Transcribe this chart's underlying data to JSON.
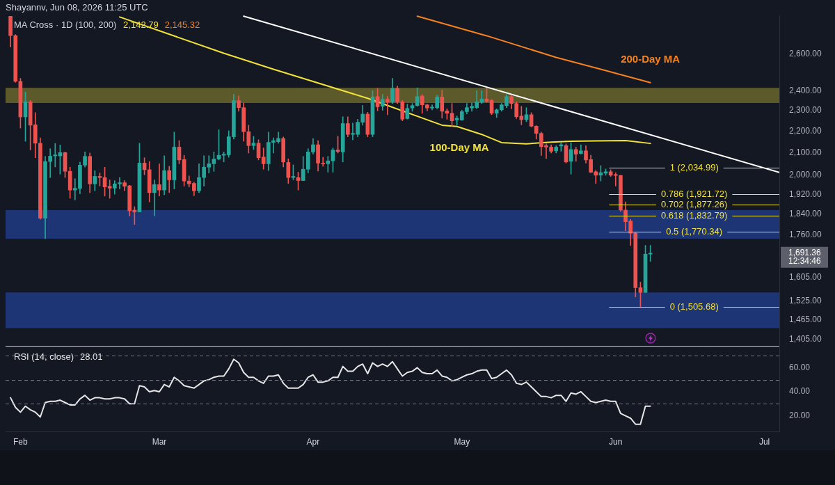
{
  "chart_data": [
    {
      "type": "candlestick",
      "title": "Shayannv, Jun 08, 2026 11:25 UTC",
      "legend_title": "MA Cross · 1D (100, 200)",
      "annotations": [
        "2,142.79",
        "2,145.32",
        "1,691.36",
        "12:34:46"
      ],
      "x": [
        "2026-01-30",
        "2026-01-31",
        "2026-02-01",
        "2026-02-02",
        "2026-02-03",
        "2026-02-04",
        "2026-02-05",
        "2026-02-06",
        "2026-02-07",
        "2026-02-08",
        "2026-02-09",
        "2026-02-10",
        "2026-02-11",
        "2026-02-12",
        "2026-02-13",
        "2026-02-14",
        "2026-02-15",
        "2026-02-16",
        "2026-02-17",
        "2026-02-18",
        "2026-02-19",
        "2026-02-20",
        "2026-02-21",
        "2026-02-22",
        "2026-02-23",
        "2026-02-24",
        "2026-02-25",
        "2026-02-26",
        "2026-02-27",
        "2026-02-28",
        "2026-03-01",
        "2026-03-02",
        "2026-03-03",
        "2026-03-04",
        "2026-03-05",
        "2026-03-06",
        "2026-03-07",
        "2026-03-08",
        "2026-03-09",
        "2026-03-10",
        "2026-03-11",
        "2026-03-12",
        "2026-03-13",
        "2026-03-14",
        "2026-03-15",
        "2026-03-16",
        "2026-03-17",
        "2026-03-18",
        "2026-03-19",
        "2026-03-20",
        "2026-03-21",
        "2026-03-22",
        "2026-03-23",
        "2026-03-24",
        "2026-03-25",
        "2026-03-26",
        "2026-03-27",
        "2026-03-28",
        "2026-03-29",
        "2026-03-30",
        "2026-03-31",
        "2026-04-01",
        "2026-04-02",
        "2026-04-03",
        "2026-04-04",
        "2026-04-05",
        "2026-04-06",
        "2026-04-07",
        "2026-04-08",
        "2026-04-09",
        "2026-04-10",
        "2026-04-11",
        "2026-04-12",
        "2026-04-13",
        "2026-04-14",
        "2026-04-15",
        "2026-04-16",
        "2026-04-17",
        "2026-04-18",
        "2026-04-19",
        "2026-04-20",
        "2026-04-21",
        "2026-04-22",
        "2026-04-23",
        "2026-04-24",
        "2026-04-25",
        "2026-04-26",
        "2026-04-27",
        "2026-04-28",
        "2026-04-29",
        "2026-04-30",
        "2026-05-01",
        "2026-05-02",
        "2026-05-03",
        "2026-05-04",
        "2026-05-05",
        "2026-05-06",
        "2026-05-07",
        "2026-05-08",
        "2026-05-09",
        "2026-05-10",
        "2026-05-11",
        "2026-05-12",
        "2026-05-13",
        "2026-05-14",
        "2026-05-15",
        "2026-05-16",
        "2026-05-17",
        "2026-05-18",
        "2026-05-19",
        "2026-05-20",
        "2026-05-21",
        "2026-05-22",
        "2026-05-23",
        "2026-05-24",
        "2026-05-25",
        "2026-05-26",
        "2026-05-27",
        "2026-05-28",
        "2026-05-29",
        "2026-05-30",
        "2026-05-31",
        "2026-06-01",
        "2026-06-02",
        "2026-06-03",
        "2026-06-04",
        "2026-06-05",
        "2026-06-06",
        "2026-06-07",
        "2026-06-08"
      ],
      "ohlc": [
        [
          2819,
          2819,
          2638,
          2704
        ],
        [
          2704,
          2710,
          2445,
          2450
        ],
        [
          2450,
          2466,
          2215,
          2269
        ],
        [
          2269,
          2394,
          2153,
          2344
        ],
        [
          2344,
          2351,
          2113,
          2229
        ],
        [
          2231,
          2290,
          2078,
          2144
        ],
        [
          2144,
          2169,
          1820,
          1824
        ],
        [
          1824,
          2084,
          1745,
          2061
        ],
        [
          2061,
          2119,
          1991,
          2085
        ],
        [
          2086,
          2143,
          2037,
          2091
        ],
        [
          2086,
          2136,
          2006,
          2101
        ],
        [
          2101,
          2104,
          1991,
          2018
        ],
        [
          2018,
          2036,
          1904,
          1938
        ],
        [
          1938,
          1986,
          1897,
          1945
        ],
        [
          1945,
          2058,
          1923,
          2045
        ],
        [
          2045,
          2104,
          2036,
          2084
        ],
        [
          2084,
          2099,
          1927,
          1964
        ],
        [
          1964,
          2021,
          1935,
          1996
        ],
        [
          1996,
          2011,
          1955,
          1991
        ],
        [
          1991,
          2036,
          1913,
          1951
        ],
        [
          1954,
          1981,
          1904,
          1946
        ],
        [
          1946,
          1978,
          1921,
          1964
        ],
        [
          1964,
          1991,
          1942,
          1969
        ],
        [
          1969,
          1978,
          1935,
          1954
        ],
        [
          1956,
          1958,
          1833,
          1853
        ],
        [
          1856,
          1870,
          1799,
          1849
        ],
        [
          1849,
          2144,
          1849,
          2054
        ],
        [
          2054,
          2078,
          2003,
          2025
        ],
        [
          2025,
          2061,
          1889,
          1927
        ],
        [
          1927,
          1981,
          1833,
          1961
        ],
        [
          1961,
          2051,
          1913,
          1938
        ],
        [
          1938,
          2087,
          1918,
          2021
        ],
        [
          2021,
          2040,
          1927,
          1981
        ],
        [
          1981,
          2196,
          1942,
          2126
        ],
        [
          2126,
          2156,
          2051,
          2068
        ],
        [
          2070,
          2089,
          1955,
          1976
        ],
        [
          1976,
          1998,
          1951,
          1964
        ],
        [
          1966,
          1971,
          1915,
          1935
        ],
        [
          1935,
          2051,
          1927,
          1991
        ],
        [
          1991,
          2087,
          1955,
          2036
        ],
        [
          2036,
          2087,
          2011,
          2051
        ],
        [
          2051,
          2104,
          2018,
          2072
        ],
        [
          2072,
          2207,
          2068,
          2089
        ],
        [
          2089,
          2104,
          2059,
          2094
        ],
        [
          2091,
          2202,
          2080,
          2174
        ],
        [
          2174,
          2382,
          2163,
          2350
        ],
        [
          2350,
          2374,
          2297,
          2315
        ],
        [
          2315,
          2338,
          2153,
          2198
        ],
        [
          2198,
          2229,
          2099,
          2133
        ],
        [
          2133,
          2176,
          2115,
          2144
        ],
        [
          2144,
          2160,
          2068,
          2078
        ],
        [
          2081,
          2122,
          2027,
          2051
        ],
        [
          2051,
          2196,
          2021,
          2148
        ],
        [
          2148,
          2169,
          2099,
          2156
        ],
        [
          2151,
          2196,
          2144,
          2166
        ],
        [
          2166,
          2173,
          2037,
          2059
        ],
        [
          2057,
          2073,
          1966,
          1991
        ],
        [
          1991,
          2046,
          1981,
          1996
        ],
        [
          1991,
          2014,
          1938,
          1978
        ],
        [
          1978,
          2084,
          1978,
          2027
        ],
        [
          2027,
          2119,
          2011,
          2104
        ],
        [
          2104,
          2166,
          2094,
          2137
        ],
        [
          2137,
          2156,
          2019,
          2054
        ],
        [
          2054,
          2080,
          2040,
          2051
        ],
        [
          2051,
          2084,
          2014,
          2064
        ],
        [
          2064,
          2122,
          2014,
          2113
        ],
        [
          2113,
          2176,
          2099,
          2106
        ],
        [
          2104,
          2270,
          2059,
          2237
        ],
        [
          2237,
          2270,
          2174,
          2185
        ],
        [
          2185,
          2239,
          2160,
          2190
        ],
        [
          2185,
          2258,
          2174,
          2243
        ],
        [
          2243,
          2326,
          2229,
          2283
        ],
        [
          2283,
          2292,
          2174,
          2185
        ],
        [
          2185,
          2401,
          2174,
          2369
        ],
        [
          2371,
          2414,
          2299,
          2319
        ],
        [
          2322,
          2382,
          2302,
          2357
        ],
        [
          2357,
          2372,
          2280,
          2343
        ],
        [
          2344,
          2466,
          2336,
          2413
        ],
        [
          2413,
          2425,
          2336,
          2344
        ],
        [
          2344,
          2351,
          2250,
          2258
        ],
        [
          2261,
          2332,
          2258,
          2311
        ],
        [
          2313,
          2336,
          2297,
          2325
        ],
        [
          2325,
          2416,
          2322,
          2371
        ],
        [
          2374,
          2381,
          2287,
          2329
        ],
        [
          2329,
          2332,
          2299,
          2313
        ],
        [
          2313,
          2329,
          2304,
          2318
        ],
        [
          2315,
          2378,
          2309,
          2369
        ],
        [
          2369,
          2405,
          2263,
          2297
        ],
        [
          2299,
          2309,
          2258,
          2287
        ],
        [
          2287,
          2336,
          2222,
          2250
        ],
        [
          2254,
          2274,
          2229,
          2263
        ],
        [
          2254,
          2302,
          2252,
          2295
        ],
        [
          2295,
          2336,
          2284,
          2315
        ],
        [
          2313,
          2338,
          2297,
          2322
        ],
        [
          2315,
          2401,
          2309,
          2344
        ],
        [
          2342,
          2401,
          2336,
          2358
        ],
        [
          2358,
          2414,
          2342,
          2346
        ],
        [
          2351,
          2357,
          2280,
          2287
        ],
        [
          2287,
          2309,
          2266,
          2304
        ],
        [
          2304,
          2336,
          2297,
          2329
        ],
        [
          2325,
          2381,
          2315,
          2371
        ],
        [
          2371,
          2378,
          2309,
          2336
        ],
        [
          2336,
          2344,
          2261,
          2270
        ],
        [
          2273,
          2322,
          2231,
          2256
        ],
        [
          2256,
          2315,
          2246,
          2280
        ],
        [
          2280,
          2290,
          2221,
          2224
        ],
        [
          2224,
          2227,
          2163,
          2190
        ],
        [
          2190,
          2196,
          2088,
          2128
        ],
        [
          2133,
          2141,
          2075,
          2126
        ],
        [
          2126,
          2137,
          2099,
          2107
        ],
        [
          2109,
          2133,
          2099,
          2126
        ],
        [
          2131,
          2147,
          2107,
          2137
        ],
        [
          2133,
          2141,
          2054,
          2059
        ],
        [
          2062,
          2147,
          2006,
          2115
        ],
        [
          2115,
          2126,
          2062,
          2094
        ],
        [
          2097,
          2137,
          2094,
          2109
        ],
        [
          2109,
          2133,
          2054,
          2068
        ],
        [
          2070,
          2089,
          2012,
          2014
        ],
        [
          2016,
          2022,
          1966,
          2001
        ],
        [
          2001,
          2043,
          1976,
          2012
        ],
        [
          2010,
          2028,
          2001,
          2016
        ],
        [
          2016,
          2025,
          1996,
          2001
        ],
        [
          2004,
          2012,
          1955,
          2000
        ],
        [
          2000,
          2001,
          1851,
          1856
        ],
        [
          1856,
          1889,
          1775,
          1810
        ],
        [
          1813,
          1820,
          1720,
          1766
        ],
        [
          1766,
          1768,
          1539,
          1570
        ],
        [
          1570,
          1589,
          1506,
          1554
        ],
        [
          1554,
          1720,
          1554,
          1688
        ],
        [
          1688,
          1720,
          1662,
          1691.36
        ]
      ],
      "colors": [
        "#ef5350",
        "#ef5350",
        "#ef5350",
        "#26a69a",
        "#ef5350",
        "#ef5350",
        "#ef5350",
        "#26a69a",
        "#26a69a",
        "#26a69a",
        "#26a69a",
        "#ef5350",
        "#ef5350",
        "#26a69a",
        "#26a69a",
        "#26a69a",
        "#ef5350",
        "#26a69a",
        "#ef5350",
        "#ef5350",
        "#ef5350",
        "#26a69a",
        "#26a69a",
        "#ef5350",
        "#ef5350",
        "#ef5350",
        "#26a69a",
        "#ef5350",
        "#ef5350",
        "#26a69a",
        "#ef5350",
        "#26a69a",
        "#ef5350",
        "#26a69a",
        "#ef5350",
        "#ef5350",
        "#ef5350",
        "#ef5350",
        "#26a69a",
        "#26a69a",
        "#26a69a",
        "#26a69a",
        "#26a69a",
        "#26a69a",
        "#26a69a",
        "#26a69a",
        "#ef5350",
        "#ef5350",
        "#ef5350",
        "#26a69a",
        "#ef5350",
        "#ef5350",
        "#26a69a",
        "#26a69a",
        "#26a69a",
        "#ef5350",
        "#ef5350",
        "#26a69a",
        "#ef5350",
        "#26a69a",
        "#26a69a",
        "#26a69a",
        "#ef5350",
        "#ef5350",
        "#26a69a",
        "#26a69a",
        "#ef5350",
        "#26a69a",
        "#ef5350",
        "#26a69a",
        "#26a69a",
        "#26a69a",
        "#ef5350",
        "#26a69a",
        "#ef5350",
        "#26a69a",
        "#ef5350",
        "#26a69a",
        "#ef5350",
        "#ef5350",
        "#26a69a",
        "#26a69a",
        "#26a69a",
        "#ef5350",
        "#ef5350",
        "#26a69a",
        "#26a69a",
        "#ef5350",
        "#ef5350",
        "#ef5350",
        "#26a69a",
        "#26a69a",
        "#26a69a",
        "#26a69a",
        "#26a69a",
        "#26a69a",
        "#ef5350",
        "#ef5350",
        "#26a69a",
        "#26a69a",
        "#26a69a",
        "#ef5350",
        "#ef5350",
        "#ef5350",
        "#26a69a",
        "#ef5350",
        "#ef5350",
        "#ef5350",
        "#ef5350",
        "#ef5350",
        "#26a69a",
        "#26a69a",
        "#ef5350",
        "#26a69a",
        "#ef5350",
        "#26a69a",
        "#ef5350",
        "#ef5350",
        "#ef5350",
        "#26a69a",
        "#26a69a",
        "#ef5350",
        "#ef5350",
        "#ef5350",
        "#ef5350",
        "#ef5350",
        "#ef5350",
        "#ef5350",
        "#26a69a",
        "#26a69a"
      ],
      "series": [
        {
          "type": "line",
          "color": "#ffffff",
          "x": [
            "2026-03-18",
            "2026-07-04"
          ],
          "values": [
            2820,
            2013
          ]
        },
        {
          "name": "100-Day MA",
          "type": "line",
          "color": "#f2e23a",
          "x": [
            "2026-02-21",
            "2026-03-14",
            "2026-03-24",
            "2026-04-12",
            "2026-04-27",
            "2026-04-30",
            "2026-05-05",
            "2026-05-09",
            "2026-05-14",
            "2026-05-19",
            "2026-05-23",
            "2026-05-28",
            "2026-06-03",
            "2026-06-08"
          ],
          "values": [
            2815,
            2603,
            2515,
            2362,
            2229,
            2223,
            2185,
            2147,
            2141,
            2149,
            2153,
            2155,
            2156,
            2143
          ]
        },
        {
          "name": "200-Day MA",
          "type": "line",
          "color": "#f5821f",
          "x": [
            "2026-04-22",
            "2026-05-06",
            "2026-05-20",
            "2026-05-29",
            "2026-06-08"
          ],
          "values": [
            2820,
            2703,
            2580,
            2515,
            2443
          ]
        }
      ],
      "xlim": [
        "2026-01-29",
        "2026-07-04"
      ],
      "ylim": [
        1385,
        2825
      ],
      "log": true,
      "tick_labels": "y",
      "yticks": [
        {
          "value": 1405,
          "label": "1,405.00"
        },
        {
          "value": 1465,
          "label": "1,465.00"
        },
        {
          "value": 1525,
          "label": "1,525.00"
        },
        {
          "value": 1605,
          "label": "1,605.00"
        },
        {
          "value": 1760,
          "label": "1,760.00"
        },
        {
          "value": 1840,
          "label": "1,840.00"
        },
        {
          "value": 1920,
          "label": "1,920.00"
        },
        {
          "value": 2000,
          "label": "2,000.00"
        },
        {
          "value": 2100,
          "label": "2,100.00"
        },
        {
          "value": 2200,
          "label": "2,200.00"
        },
        {
          "value": 2300,
          "label": "2,300.00"
        },
        {
          "value": 2400,
          "label": "2,400.00"
        },
        {
          "value": 2600,
          "label": "2,600.00"
        }
      ],
      "bands": [
        {
          "axis": "y",
          "from": 2338,
          "to": 2416,
          "color": "#5c5a2b"
        },
        {
          "axis": "y",
          "from": 1745,
          "to": 1856,
          "color": "#1e3575"
        },
        {
          "axis": "y",
          "from": 1439,
          "to": 1554,
          "color": "#1e3575"
        }
      ],
      "ref_lines": [
        {
          "axis": "y",
          "value": 2034.99,
          "label": "1 (2,034.99)",
          "color": "#f2e23a"
        },
        {
          "axis": "y",
          "value": 1921.72,
          "label": "0.786 (1,921.72)",
          "color": "#f2e23a"
        },
        {
          "axis": "y",
          "value": 1877.26,
          "label": "0.702 (1,877.26)",
          "color": "#f2e23a"
        },
        {
          "axis": "y",
          "value": 1832.79,
          "label": "0.618 (1,832.79)",
          "color": "#f2e23a"
        },
        {
          "axis": "y",
          "value": 1770.34,
          "label": "0.5 (1,770.34)",
          "color": "#f2e23a"
        },
        {
          "axis": "y",
          "value": 1505.68,
          "label": "0 (1,505.68)",
          "color": "#f2e23a"
        }
      ]
    },
    {
      "type": "line",
      "legend": "top left",
      "annotations": [
        "28.01"
      ],
      "x": [
        "2026-01-30",
        "2026-01-31",
        "2026-02-01",
        "2026-02-02",
        "2026-02-03",
        "2026-02-04",
        "2026-02-05",
        "2026-02-06",
        "2026-02-07",
        "2026-02-08",
        "2026-02-09",
        "2026-02-10",
        "2026-02-11",
        "2026-02-12",
        "2026-02-13",
        "2026-02-14",
        "2026-02-15",
        "2026-02-16",
        "2026-02-17",
        "2026-02-18",
        "2026-02-19",
        "2026-02-20",
        "2026-02-21",
        "2026-02-22",
        "2026-02-23",
        "2026-02-24",
        "2026-02-25",
        "2026-02-26",
        "2026-02-27",
        "2026-02-28",
        "2026-03-01",
        "2026-03-02",
        "2026-03-03",
        "2026-03-04",
        "2026-03-05",
        "2026-03-06",
        "2026-03-07",
        "2026-03-08",
        "2026-03-09",
        "2026-03-10",
        "2026-03-11",
        "2026-03-12",
        "2026-03-13",
        "2026-03-14",
        "2026-03-15",
        "2026-03-16",
        "2026-03-17",
        "2026-03-18",
        "2026-03-19",
        "2026-03-20",
        "2026-03-21",
        "2026-03-22",
        "2026-03-23",
        "2026-03-24",
        "2026-03-25",
        "2026-03-26",
        "2026-03-27",
        "2026-03-28",
        "2026-03-29",
        "2026-03-30",
        "2026-03-31",
        "2026-04-01",
        "2026-04-02",
        "2026-04-03",
        "2026-04-04",
        "2026-04-05",
        "2026-04-06",
        "2026-04-07",
        "2026-04-08",
        "2026-04-09",
        "2026-04-10",
        "2026-04-11",
        "2026-04-12",
        "2026-04-13",
        "2026-04-14",
        "2026-04-15",
        "2026-04-16",
        "2026-04-17",
        "2026-04-18",
        "2026-04-19",
        "2026-04-20",
        "2026-04-21",
        "2026-04-22",
        "2026-04-23",
        "2026-04-24",
        "2026-04-25",
        "2026-04-26",
        "2026-04-27",
        "2026-04-28",
        "2026-04-29",
        "2026-04-30",
        "2026-05-01",
        "2026-05-02",
        "2026-05-03",
        "2026-05-04",
        "2026-05-05",
        "2026-05-06",
        "2026-05-07",
        "2026-05-08",
        "2026-05-09",
        "2026-05-10",
        "2026-05-11",
        "2026-05-12",
        "2026-05-13",
        "2026-05-14",
        "2026-05-15",
        "2026-05-16",
        "2026-05-17",
        "2026-05-18",
        "2026-05-19",
        "2026-05-20",
        "2026-05-21",
        "2026-05-22",
        "2026-05-23",
        "2026-05-24",
        "2026-05-25",
        "2026-05-26",
        "2026-05-27",
        "2026-05-28",
        "2026-05-29",
        "2026-05-30",
        "2026-05-31",
        "2026-06-01",
        "2026-06-02",
        "2026-06-03",
        "2026-06-04",
        "2026-06-05",
        "2026-06-06",
        "2026-06-07",
        "2026-06-08"
      ],
      "series": [
        {
          "name": "RSI (14, close)",
          "color": "#e6e6e6",
          "values": [
            35,
            27,
            23,
            28,
            25,
            23,
            19,
            31,
            32,
            32,
            33,
            31,
            29,
            29,
            34,
            37,
            33,
            35,
            35,
            34,
            34,
            35,
            35,
            34,
            30,
            30,
            45,
            44,
            40,
            41,
            40,
            46,
            44,
            52,
            49,
            45,
            44,
            43,
            46,
            49,
            50,
            52,
            53,
            53,
            59,
            67,
            64,
            56,
            52,
            52,
            49,
            47,
            53,
            53,
            54,
            47,
            43,
            43,
            43,
            46,
            52,
            54,
            48,
            48,
            49,
            52,
            52,
            61,
            57,
            57,
            61,
            63,
            55,
            64,
            61,
            63,
            61,
            65,
            59,
            53,
            56,
            57,
            60,
            56,
            55,
            55,
            58,
            53,
            52,
            49,
            50,
            52,
            54,
            55,
            57,
            58,
            58,
            51,
            52,
            55,
            58,
            54,
            47,
            46,
            48,
            44,
            40,
            36,
            36,
            35,
            37,
            37,
            32,
            39,
            38,
            40,
            36,
            32,
            31,
            32,
            33,
            32,
            32,
            22,
            20,
            18,
            13,
            13,
            28,
            28.01
          ]
        }
      ],
      "xlim": [
        "2026-01-29",
        "2026-07-04"
      ],
      "xticks": [
        {
          "value": "2026-02-01",
          "label": "Feb"
        },
        {
          "value": "2026-03-01",
          "label": "Mar"
        },
        {
          "value": "2026-04-01",
          "label": "Apr"
        },
        {
          "value": "2026-05-01",
          "label": "May"
        },
        {
          "value": "2026-06-01",
          "label": "Jun"
        },
        {
          "value": "2026-07-01",
          "label": "Jul"
        }
      ],
      "ylim": [
        7,
        77
      ],
      "yticks": [
        {
          "value": 20,
          "label": "20.00"
        },
        {
          "value": 40,
          "label": "40.00"
        },
        {
          "value": 60,
          "label": "60.00"
        }
      ],
      "ref_lines": [
        {
          "axis": "y",
          "value": 70,
          "color": "#787b86",
          "line_style": "dashed"
        },
        {
          "axis": "y",
          "value": 50,
          "color": "#787b86",
          "line_style": "dashed"
        },
        {
          "axis": "y",
          "value": 30,
          "color": "#787b86",
          "line_style": "dashed"
        }
      ]
    }
  ]
}
